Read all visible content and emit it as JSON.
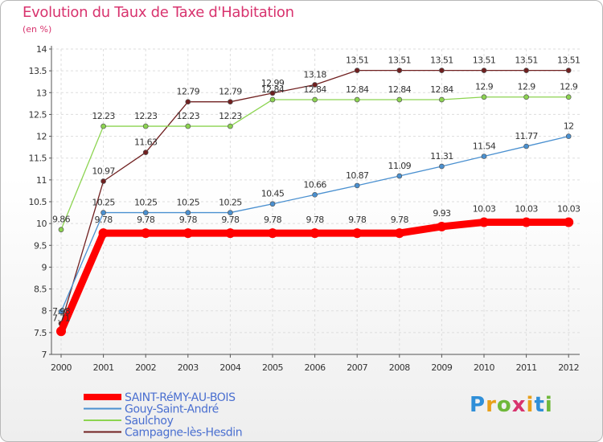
{
  "chart_data": {
    "type": "line",
    "title": "Evolution du Taux de Taxe d'Habitation",
    "unit": "(en %)",
    "x": [
      "2000",
      "2001",
      "2002",
      "2003",
      "2004",
      "2005",
      "2006",
      "2007",
      "2008",
      "2009",
      "2010",
      "2011",
      "2012"
    ],
    "ylim": [
      7,
      14
    ],
    "yticks": [
      "7",
      "7.5",
      "8",
      "8.5",
      "9",
      "9.5",
      "10",
      "10.5",
      "11",
      "11.5",
      "12",
      "12.5",
      "13",
      "13.5",
      "14"
    ],
    "grid": true,
    "legend_position": "bottom-left",
    "series": [
      {
        "name": "SAINT-RéMY-AU-BOIS",
        "color": "#ff0000",
        "values": [
          7.53,
          9.78,
          9.78,
          9.78,
          9.78,
          9.78,
          9.78,
          9.78,
          9.78,
          9.93,
          10.03,
          10.03,
          10.03
        ],
        "labels": [
          "",
          "9.78",
          "9.78",
          "9.78",
          "9.78",
          "9.78",
          "9.78",
          "9.78",
          "9.78",
          "9.93",
          "10.03",
          "10.03",
          "10.03"
        ]
      },
      {
        "name": "Gouy-Saint-André",
        "color": "#4a90d0",
        "values": [
          7.98,
          10.25,
          10.25,
          10.25,
          10.25,
          10.45,
          10.66,
          10.87,
          11.09,
          11.31,
          11.54,
          11.77,
          12
        ],
        "labels": [
          "7.98",
          "10.25",
          "10.25",
          "10.25",
          "10.25",
          "10.45",
          "10.66",
          "10.87",
          "11.09",
          "11.31",
          "11.54",
          "11.77",
          "12"
        ]
      },
      {
        "name": "Saulchoy",
        "color": "#8cd450",
        "values": [
          9.86,
          12.23,
          12.23,
          12.23,
          12.23,
          12.84,
          12.84,
          12.84,
          12.84,
          12.84,
          12.9,
          12.9,
          12.9
        ],
        "labels": [
          "9.86",
          "12.23",
          "12.23",
          "12.23",
          "12.23",
          "12.84",
          "12.84",
          "12.84",
          "12.84",
          "12.84",
          "12.9",
          "12.9",
          "12.9"
        ]
      },
      {
        "name": "Campagne-lès-Hesdin",
        "color": "#702020",
        "values": [
          7.71,
          10.97,
          11.63,
          12.79,
          12.79,
          12.99,
          13.18,
          13.51,
          13.51,
          13.51,
          13.51,
          13.51,
          13.51
        ],
        "labels": [
          "7.71",
          "10.97",
          "11.63",
          "12.79",
          "12.79",
          "12.99",
          "13.18",
          "13.51",
          "13.51",
          "13.51",
          "13.51",
          "13.51",
          "13.51"
        ]
      }
    ]
  },
  "logo": {
    "text": "Proxiti"
  }
}
